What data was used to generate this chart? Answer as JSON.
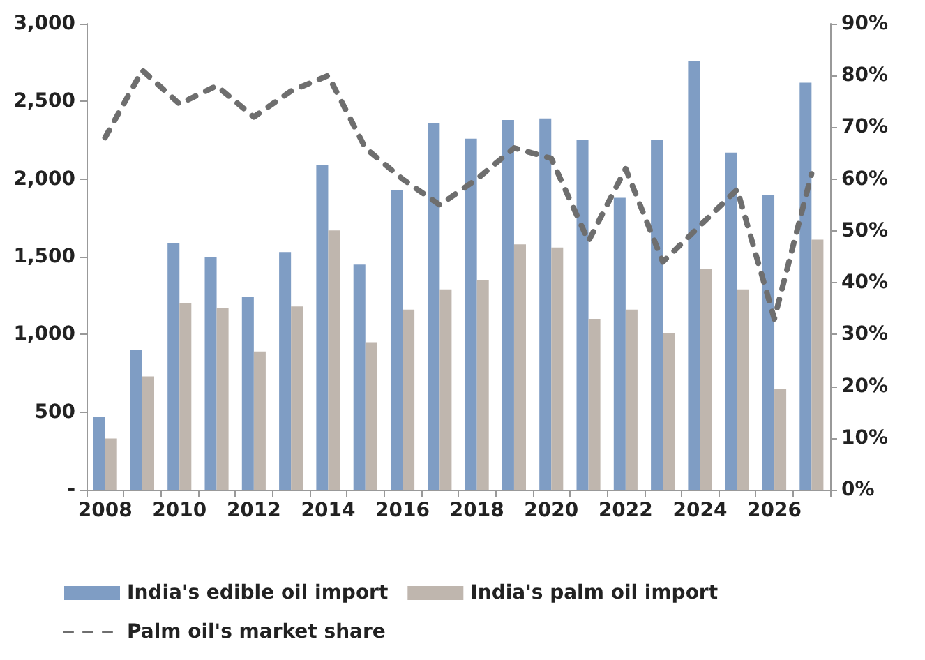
{
  "chart_data": {
    "type": "bar",
    "categories": [
      "2008",
      null,
      "2010",
      null,
      "2012",
      null,
      "2014",
      null,
      "2016",
      null,
      "2018",
      null,
      "2020",
      null,
      "2022",
      null,
      "2024",
      null,
      "2026",
      null
    ],
    "series": [
      {
        "name": "India's edible oil import",
        "color": "#7f9dc4",
        "values": [
          470,
          900,
          1590,
          1500,
          1240,
          1530,
          2090,
          1450,
          1930,
          2360,
          2260,
          2380,
          2390,
          2250,
          1880,
          2250,
          2760,
          2170,
          1900,
          2620
        ]
      },
      {
        "name": "India's palm oil import",
        "color": "#bfb6ae",
        "values": [
          330,
          730,
          1200,
          1170,
          890,
          1180,
          1670,
          950,
          1160,
          1290,
          1350,
          1580,
          1560,
          1100,
          1160,
          1010,
          1420,
          1290,
          650,
          1610
        ]
      },
      {
        "name": "Palm oil's market share",
        "type": "line",
        "axis": "y2",
        "color": "#6e6e6e",
        "line_style": "dashed",
        "marker": "none",
        "values": [
          68,
          81,
          74.5,
          78,
          72,
          77,
          80,
          66,
          60,
          55,
          60,
          66,
          64,
          48,
          62,
          44,
          51,
          58,
          33,
          61
        ]
      }
    ],
    "ylim": [
      0,
      3000
    ],
    "yticks": [
      {
        "value": 0,
        "label": "-"
      },
      500,
      {
        "value": 1000,
        "label": "1,000"
      },
      {
        "value": 1500,
        "label": "1,500"
      },
      {
        "value": 2000,
        "label": "2,000"
      },
      {
        "value": 2500,
        "label": "2,500"
      },
      {
        "value": 3000,
        "label": "3,000"
      }
    ],
    "y2lim": [
      0,
      90
    ],
    "y2ticks": [
      {
        "value": 0,
        "label": "0%"
      },
      {
        "value": 10,
        "label": "10%"
      },
      {
        "value": 20,
        "label": "20%"
      },
      {
        "value": 30,
        "label": "30%"
      },
      {
        "value": 40,
        "label": "40%"
      },
      {
        "value": 50,
        "label": "50%"
      },
      {
        "value": 60,
        "label": "60%"
      },
      {
        "value": 70,
        "label": "70%"
      },
      {
        "value": 80,
        "label": "80%"
      },
      {
        "value": 90,
        "label": "90%"
      }
    ],
    "grid": false,
    "legend": "bottom"
  }
}
